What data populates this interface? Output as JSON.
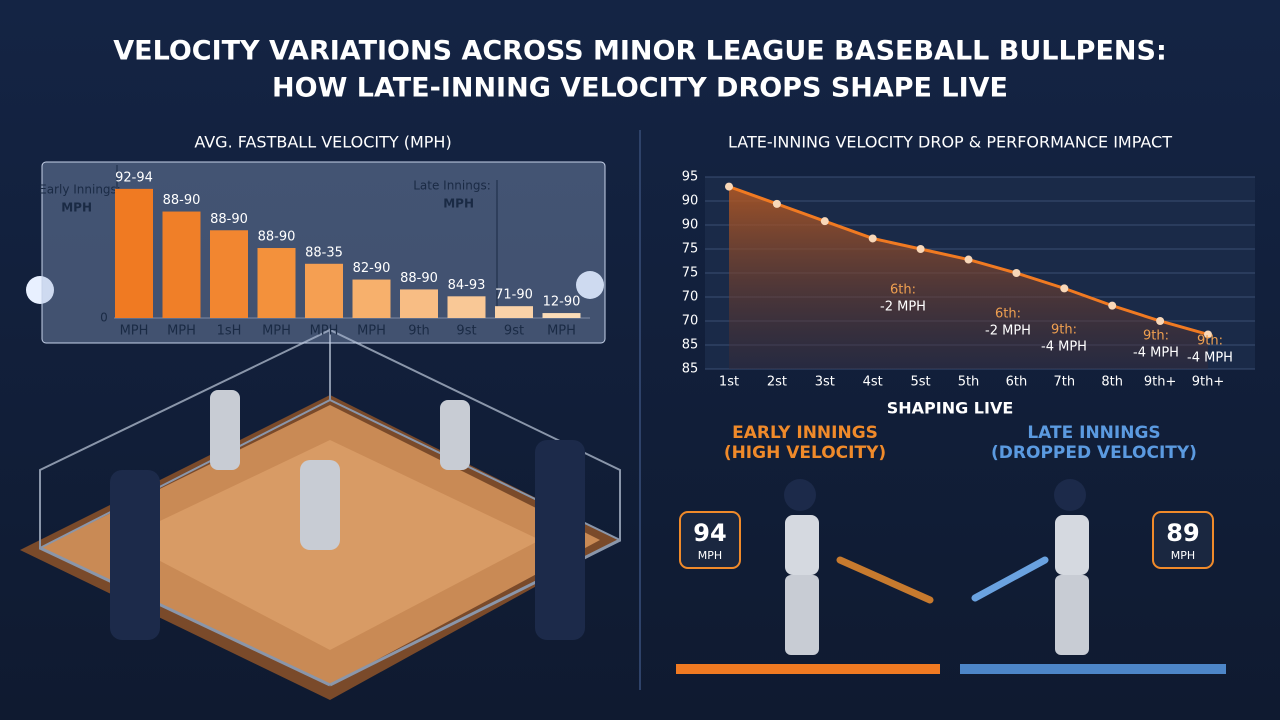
{
  "title": [
    "VELOCITY VARIATIONS ACROSS MINOR LEAGUE BASEBALL BULLPENS:",
    "HOW LATE-INNING VELOCITY DROPS SHAPE LIVE"
  ],
  "chart_data": [
    {
      "type": "bar",
      "title": "AVG. FASTBALL VELOCITY (MPH)",
      "categories": [
        "MPH",
        "MPH",
        "1sH",
        "MPH",
        "MPH",
        "MPH",
        "9th",
        "9st",
        "9st",
        "MPH"
      ],
      "values": [
        131,
        108,
        89,
        71,
        55,
        39,
        29,
        22,
        12,
        5
      ],
      "value_labels": [
        "92-94",
        "88-90",
        "88-90",
        "88-90",
        "88-35",
        "82-90",
        "88-90",
        "84-93",
        "71-90",
        "12-90"
      ],
      "colors": [
        "#f07a22",
        "#f07f28",
        "#f28630",
        "#f3913c",
        "#f59f52",
        "#f7b06c",
        "#f8bd84",
        "#f9c896",
        "#fad2a8",
        "#fbdcb8"
      ],
      "ylim": [
        0,
        140
      ],
      "yticks": [
        0
      ],
      "annotations": [
        [
          "Early Innings:",
          "MPH"
        ],
        [
          "Late Innings:",
          "MPH"
        ]
      ]
    },
    {
      "type": "line",
      "title": "LATE-INNING VELOCITY DROP & PERFORMANCE IMPACT",
      "categories": [
        "1st",
        "2st",
        "3st",
        "4st",
        "5st",
        "5th",
        "6th",
        "7th",
        "8th",
        "9th+",
        "9th+"
      ],
      "values": [
        94.5,
        93.6,
        92.7,
        91.8,
        91.25,
        90.7,
        90.0,
        89.2,
        88.3,
        87.5,
        86.8
      ],
      "color": "#f07a22",
      "ylim": [
        85,
        95
      ],
      "yticks": [
        95,
        {
          "value": 93.75,
          "label": "90"
        },
        {
          "value": 92.5,
          "label": "90"
        },
        {
          "value": 91.25,
          "label": "75"
        },
        {
          "value": 90,
          "label": "75"
        },
        {
          "value": 88.75,
          "label": "70"
        },
        {
          "value": 87.5,
          "label": "70"
        },
        {
          "value": 86.25,
          "label": "85"
        },
        85
      ],
      "grid": true,
      "annotations": [
        [
          "6th:",
          "-2 MPH"
        ],
        [
          "6th:",
          "-2 MPH"
        ],
        [
          "9th:",
          "-4 MPH"
        ],
        [
          "9th:",
          "-4 MPH"
        ],
        [
          "9th:",
          "-4 MPH"
        ]
      ]
    }
  ],
  "panels": {
    "heading": "SHAPING LIVE",
    "early": {
      "title": "EARLY INNINGS",
      "subtitle": "(HIGH VELOCITY)",
      "speed": "94",
      "unit": "MPH"
    },
    "late": {
      "title": "LATE INNINGS",
      "subtitle": "(DROPPED VELOCITY)",
      "speed": "89",
      "unit": "MPH"
    }
  }
}
